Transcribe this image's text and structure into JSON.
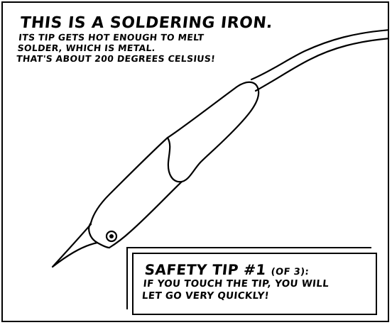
{
  "caption_top": {
    "title": "THIS IS A SOLDERING IRON.",
    "lines": [
      "ITS TIP GETS HOT ENOUGH TO MELT",
      "SOLDER, WHICH IS METAL.",
      "THAT'S ABOUT 200 DEGREES CELSIUS!"
    ]
  },
  "safety_tip": {
    "title": "SAFETY TIP #1",
    "count": "(OF 3):",
    "lines": [
      "IF YOU TOUCH THE TIP, YOU WILL",
      "LET GO VERY QUICKLY!"
    ]
  },
  "illustration": {
    "subject": "soldering-iron-drawing"
  }
}
